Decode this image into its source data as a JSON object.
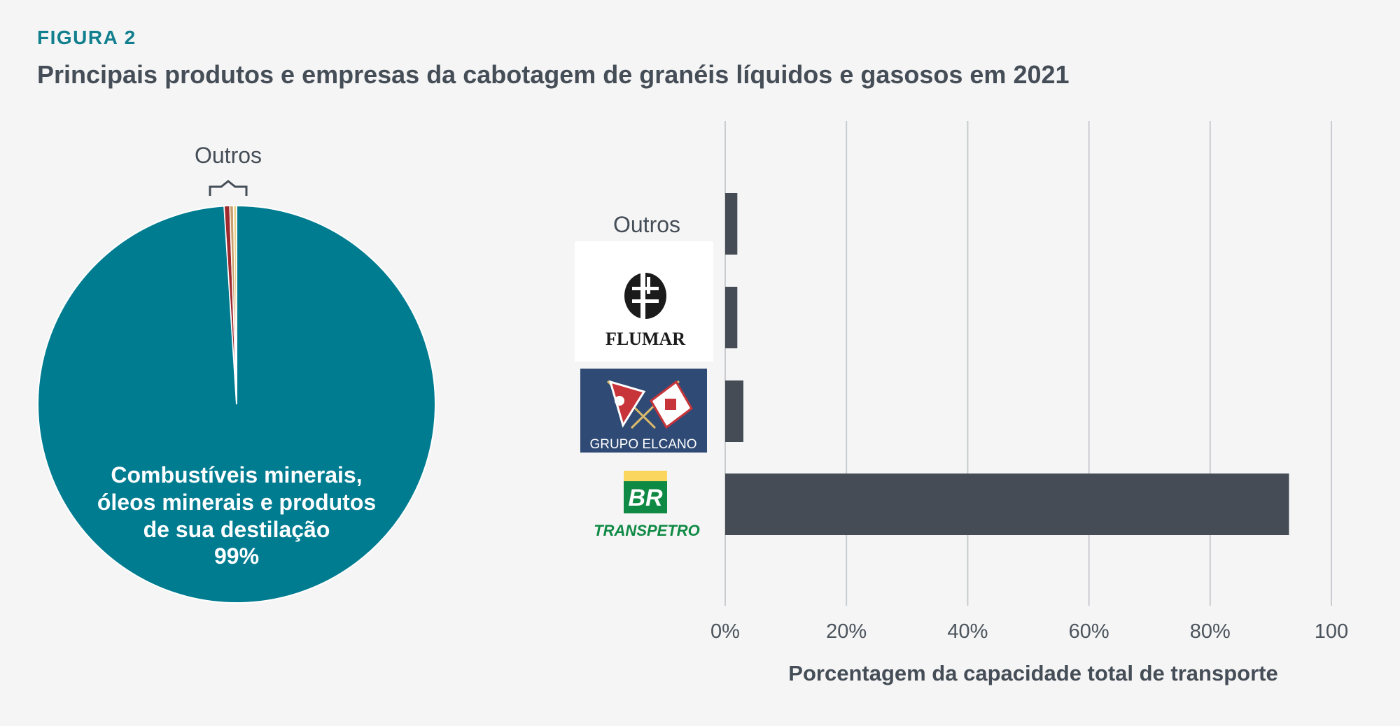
{
  "figure": {
    "label": "FIGURA 2",
    "title": "Principais produtos e empresas da cabotagem de granéis líquidos e gasosos em 2021"
  },
  "chart_data": [
    {
      "type": "pie",
      "slices": [
        {
          "name": "Combustíveis minerais, óleos minerais e produtos de sua destilação",
          "value": 99,
          "color": "#007c91"
        },
        {
          "name": "",
          "value": 0.45,
          "color": "#9e2a2e"
        },
        {
          "name": "",
          "value": 0.3,
          "color": "#c9a06b"
        },
        {
          "name": "",
          "value": 0.25,
          "color": "#e9d28c"
        }
      ],
      "main_label_lines": [
        "Combustíveis minerais,",
        "óleos minerais e produtos",
        "de sua destilação"
      ],
      "main_value_text": "99%",
      "others_label": "Outros"
    },
    {
      "type": "bar",
      "orientation": "horizontal",
      "categories": [
        "Outros",
        "FLUMAR",
        "GRUPO ELCANO",
        "TRANSPETRO"
      ],
      "values": [
        2,
        2,
        3,
        93
      ],
      "bar_color": "#454c56",
      "xlim": [
        0,
        100
      ],
      "xticks": [
        "0%",
        "20%",
        "40%",
        "60%",
        "80%",
        "100"
      ],
      "xlabel": "Porcentagem da capacidade total de transporte",
      "grid": true
    }
  ],
  "logos": {
    "flumar_text": "FLUMAR",
    "elcano_text": "GRUPO ELCANO",
    "br_text": "BR",
    "transpetro_text": "TRANSPETRO",
    "colors": {
      "elcano_bg": "#2e4a75",
      "br_green": "#0f8a45",
      "br_yellow": "#fbd65f",
      "flumar_black": "#1b1b1b"
    }
  }
}
